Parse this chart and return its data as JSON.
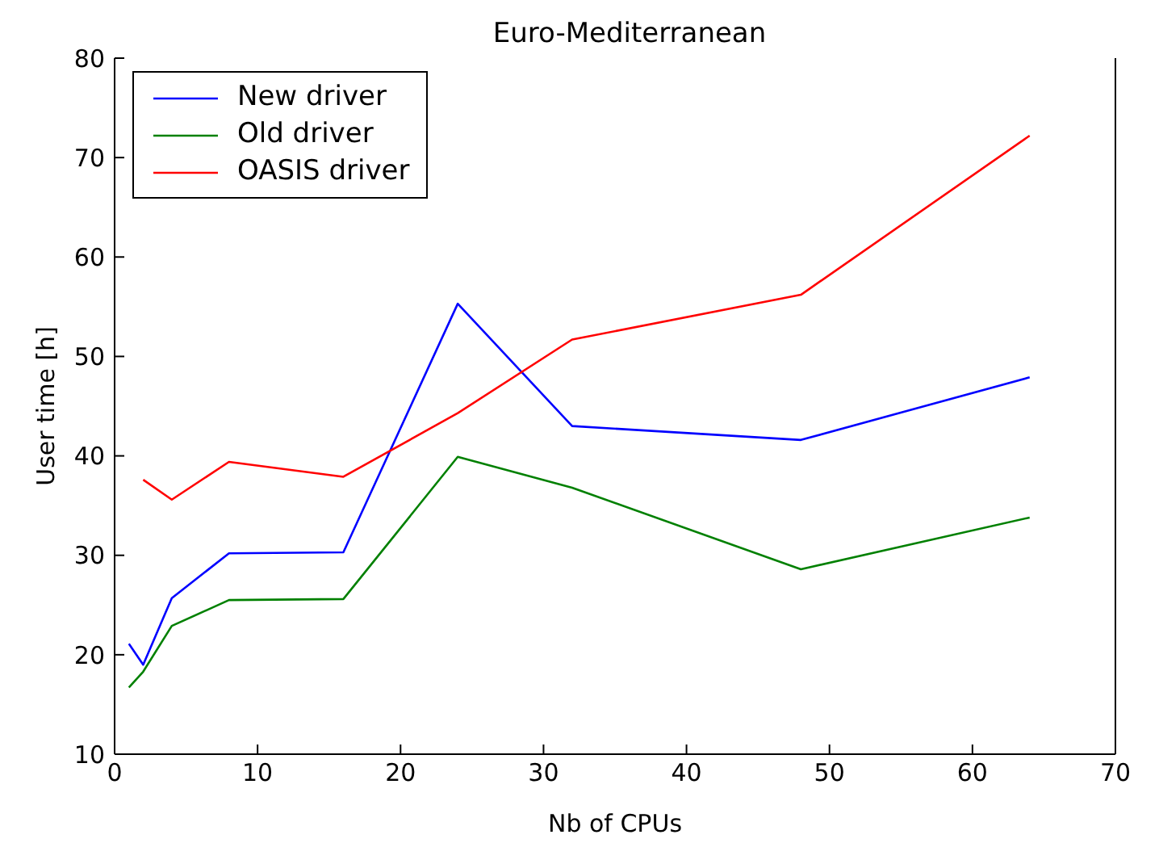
{
  "chart_data": {
    "type": "line",
    "title": "Euro-Mediterranean",
    "xlabel": "Nb of CPUs",
    "ylabel": "User time [h]",
    "xlim": [
      0,
      70
    ],
    "xticks": [
      0,
      10,
      20,
      30,
      40,
      50,
      60,
      70
    ],
    "ylim": [
      10,
      80
    ],
    "yticks": [
      10,
      20,
      30,
      40,
      50,
      60,
      70,
      80
    ],
    "grid": false,
    "legend": "top left",
    "marker": "none",
    "line_style": "solid",
    "series": [
      {
        "name": "New driver",
        "color": "#0000ff",
        "x": [
          1,
          2,
          4,
          8,
          16,
          24,
          32,
          48,
          64
        ],
        "values": [
          21.1,
          19,
          25.7,
          30.2,
          30.3,
          55.3,
          43,
          41.6,
          47.9
        ]
      },
      {
        "name": "Old driver",
        "color": "#008000",
        "x": [
          1,
          2,
          4,
          8,
          16,
          24,
          32,
          48,
          64
        ],
        "values": [
          16.7,
          18.3,
          22.9,
          25.5,
          25.6,
          39.9,
          36.8,
          28.6,
          33.8
        ]
      },
      {
        "name": "OASIS driver",
        "color": "#ff0000",
        "x": [
          2,
          4,
          8,
          16,
          24,
          32,
          48,
          64
        ],
        "values": [
          37.6,
          35.6,
          39.4,
          37.9,
          44.3,
          51.7,
          56.2,
          72.2
        ]
      }
    ]
  }
}
